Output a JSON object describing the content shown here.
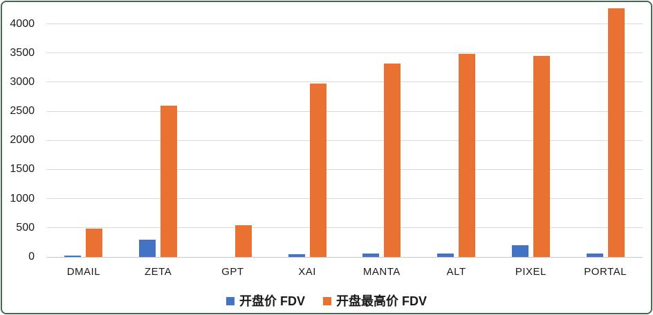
{
  "chart_data": {
    "type": "bar",
    "categories": [
      "DMAIL",
      "ZETA",
      "GPT",
      "XAI",
      "MANTA",
      "ALT",
      "PIXEL",
      "PORTAL"
    ],
    "series": [
      {
        "name": "开盘价 FDV",
        "color": "#4472C4",
        "values": [
          25,
          300,
          0,
          50,
          55,
          65,
          200,
          55
        ]
      },
      {
        "name": "开盘最高价 FDV",
        "color": "#E97132",
        "values": [
          490,
          2600,
          550,
          2980,
          3320,
          3480,
          3450,
          4270
        ]
      }
    ],
    "title": "",
    "xlabel": "",
    "ylabel": "",
    "ylim": [
      0,
      4000
    ],
    "ytick_step": 500,
    "grid": true,
    "legend_position": "bottom"
  },
  "colors": {
    "grid": "#D9D9D9",
    "axis": "#C6C6C6",
    "border": "#446850",
    "text": "#1A1A1A",
    "background": "#FFFFFF"
  }
}
